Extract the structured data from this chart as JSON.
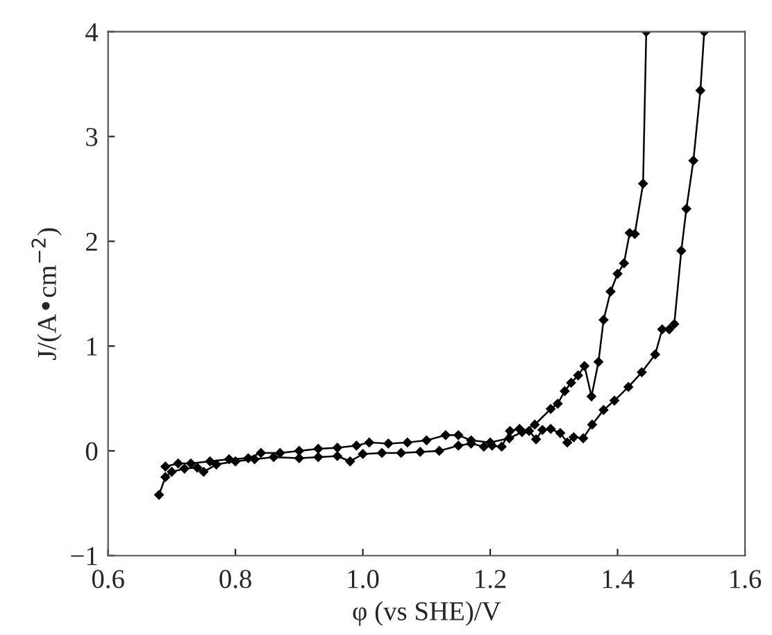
{
  "chart_data": {
    "type": "line",
    "xlabel": "φ (vs SHE)/V",
    "ylabel": "J/(A•cm$^{−2}$)",
    "xlim": [
      0.6,
      1.6
    ],
    "xticks": [
      0.6,
      0.8,
      {
        "value": 1,
        "label": "1.0"
      },
      1.2,
      1.4,
      1.6
    ],
    "ylim": [
      -1,
      4
    ],
    "yticks": [
      {
        "value": -1,
        "label": "−1"
      },
      0,
      1,
      2,
      3,
      4
    ],
    "marker": "diamond",
    "line_style": "solid",
    "grid": false,
    "series": [
      {
        "color": "#000000",
        "x": [
          0.68,
          0.69,
          0.7,
          0.72,
          0.74,
          0.75,
          0.77,
          0.8,
          0.83,
          0.86,
          0.9,
          0.93,
          0.96,
          0.98,
          1.0,
          1.03,
          1.06,
          1.09,
          1.12,
          1.15,
          1.17,
          1.19,
          1.203,
          1.218,
          1.231,
          1.246,
          1.261,
          1.272,
          1.282,
          1.295,
          1.31,
          1.321,
          1.331,
          1.346,
          1.36,
          1.378,
          1.395,
          1.417,
          1.438,
          1.459,
          1.47,
          1.481,
          1.489,
          1.5,
          1.508,
          1.519,
          1.53,
          1.536
        ],
        "values": [
          -0.42,
          -0.25,
          -0.2,
          -0.17,
          -0.16,
          -0.2,
          -0.13,
          -0.1,
          -0.08,
          -0.06,
          -0.07,
          -0.06,
          -0.05,
          -0.1,
          -0.03,
          -0.02,
          -0.02,
          -0.01,
          0.0,
          0.05,
          0.07,
          0.04,
          0.05,
          0.04,
          0.19,
          0.21,
          0.19,
          0.11,
          0.2,
          0.21,
          0.17,
          0.08,
          0.13,
          0.12,
          0.25,
          0.39,
          0.48,
          0.61,
          0.75,
          0.92,
          1.16,
          1.16,
          1.21,
          1.91,
          2.31,
          2.77,
          3.44,
          4.0
        ]
      },
      {
        "color": "#000000",
        "x": [
          0.69,
          0.71,
          0.73,
          0.76,
          0.79,
          0.82,
          0.84,
          0.87,
          0.9,
          0.93,
          0.96,
          0.99,
          1.01,
          1.04,
          1.07,
          1.1,
          1.13,
          1.15,
          1.17,
          1.2,
          1.23,
          1.25,
          1.27,
          1.295,
          1.306,
          1.317,
          1.327,
          1.338,
          1.348,
          1.359,
          1.37,
          1.378,
          1.389,
          1.4,
          1.41,
          1.419,
          1.427,
          1.44,
          1.445
        ],
        "values": [
          -0.15,
          -0.12,
          -0.12,
          -0.1,
          -0.08,
          -0.07,
          -0.02,
          -0.02,
          0.0,
          0.02,
          0.03,
          0.05,
          0.08,
          0.07,
          0.08,
          0.1,
          0.15,
          0.15,
          0.1,
          0.08,
          0.12,
          0.18,
          0.25,
          0.4,
          0.45,
          0.57,
          0.65,
          0.72,
          0.81,
          0.52,
          0.85,
          1.25,
          1.52,
          1.69,
          1.79,
          2.08,
          2.07,
          2.55,
          4.0
        ]
      }
    ]
  }
}
